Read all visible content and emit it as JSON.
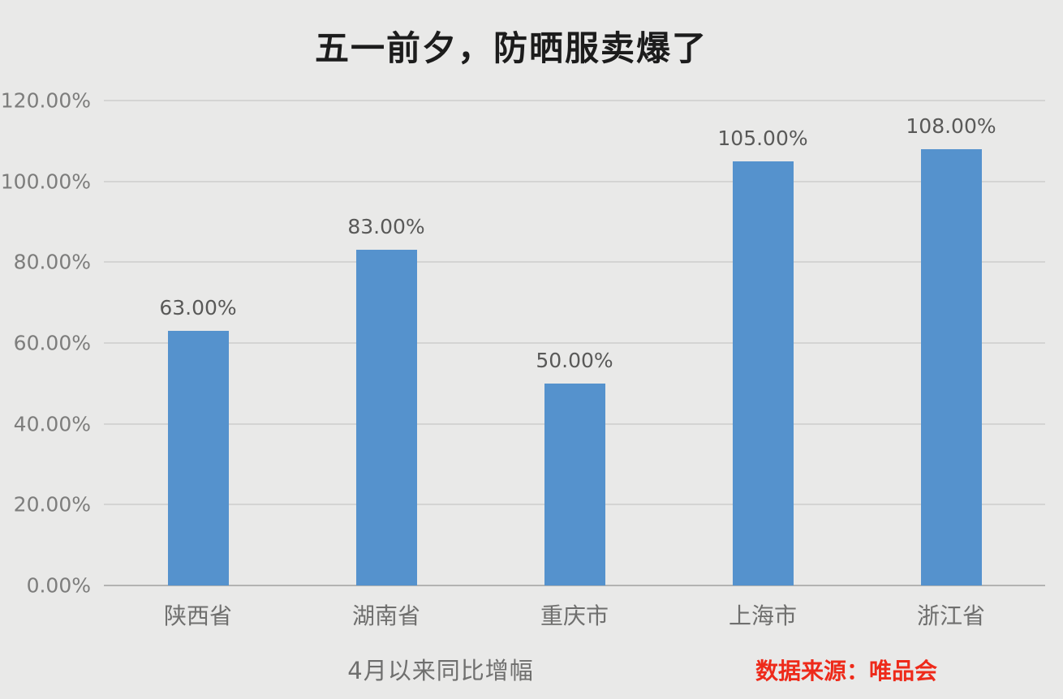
{
  "page": {
    "background_color": "#e9e9e8"
  },
  "chart_data": {
    "type": "bar",
    "title": "五一前夕，防晒服卖爆了",
    "categories": [
      "陕西省",
      "湖南省",
      "重庆市",
      "上海市",
      "浙江省"
    ],
    "values": [
      63,
      83,
      50,
      105,
      108
    ],
    "data_labels": [
      "63.00%",
      "83.00%",
      "50.00%",
      "105.00%",
      "108.00%"
    ],
    "y_ticks": [
      {
        "value": 120,
        "label": "120.00%"
      },
      {
        "value": 100,
        "label": "100.00%"
      },
      {
        "value": 80,
        "label": "80.00%"
      },
      {
        "value": 60,
        "label": "60.00%"
      },
      {
        "value": 40,
        "label": "40.00%"
      },
      {
        "value": 20,
        "label": "20.00%"
      },
      {
        "value": 0,
        "label": "0.00%"
      }
    ],
    "ylim": [
      0,
      120
    ],
    "xlabel": "4月以来同比增幅",
    "source_note": "数据来源：唯品会",
    "bar_color": "#5592cd",
    "source_color": "#ee2a1a",
    "grid": true,
    "legend": false
  }
}
